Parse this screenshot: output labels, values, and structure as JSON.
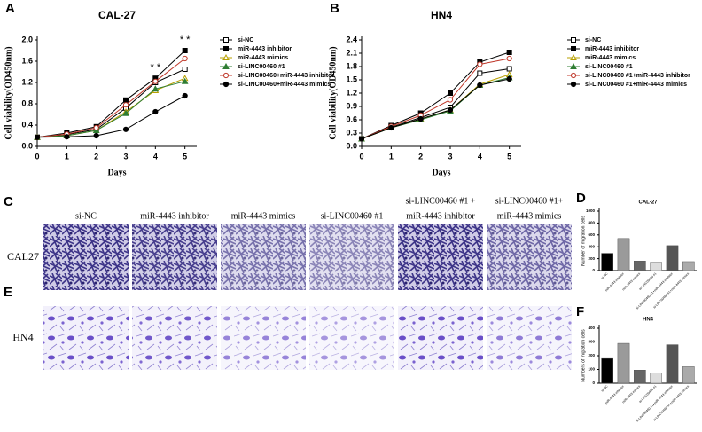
{
  "chart_data": [
    {
      "type": "line",
      "panel_label": "A",
      "title": "CAL-27",
      "xlabel": "Days",
      "ylabel": "Cell viability(OD450nm)",
      "x": [
        0,
        1,
        2,
        3,
        4,
        5
      ],
      "xlim": [
        0,
        5.4
      ],
      "xticks": [
        0,
        1,
        2,
        3,
        4,
        5
      ],
      "ylim": [
        0,
        2.0
      ],
      "yticks": [
        {
          "value": 0,
          "label": "0.0"
        },
        0.4,
        0.8,
        1.2,
        1.6,
        {
          "value": 2.0,
          "label": "2.0"
        }
      ],
      "annotations": [
        {
          "text": "* *",
          "x": 4
        },
        {
          "text": "* *",
          "x": 5
        }
      ],
      "series": [
        {
          "name": "si-NC",
          "color": "#000000",
          "marker": "square-open",
          "values": [
            0.17,
            0.22,
            0.32,
            0.72,
            1.2,
            1.45
          ]
        },
        {
          "name": "miR-4443 inhibitor",
          "color": "#000000",
          "marker": "square",
          "values": [
            0.17,
            0.25,
            0.37,
            0.87,
            1.28,
            1.8
          ]
        },
        {
          "name": "miR-4443 mimics",
          "color": "#b8a000",
          "marker": "triangle-open",
          "values": [
            0.17,
            0.2,
            0.3,
            0.65,
            1.05,
            1.28
          ]
        },
        {
          "name": "si-LINC00460 #1",
          "color": "#2e7d32",
          "marker": "triangle",
          "values": [
            0.17,
            0.2,
            0.3,
            0.62,
            1.08,
            1.22
          ]
        },
        {
          "name": "si-LINC00460+miR-4443 inhibitor",
          "color": "#c0392b",
          "marker": "circle-open",
          "values": [
            0.17,
            0.23,
            0.35,
            0.78,
            1.22,
            1.65
          ]
        },
        {
          "name": "si-LINC00460+miR-4443 mimics",
          "color": "#000000",
          "marker": "circle",
          "values": [
            0.17,
            0.18,
            0.2,
            0.32,
            0.65,
            0.95
          ]
        }
      ]
    },
    {
      "type": "line",
      "panel_label": "B",
      "title": "HN4",
      "xlabel": "Days",
      "ylabel": "Cell viability(OD450nm)",
      "x": [
        0,
        1,
        2,
        3,
        4,
        5
      ],
      "xlim": [
        0,
        5.4
      ],
      "xticks": [
        0,
        1,
        2,
        3,
        4,
        5
      ],
      "ylim": [
        0,
        2.4
      ],
      "yticks": [
        {
          "value": 0,
          "label": "0.0"
        },
        0.3,
        0.6,
        0.9,
        1.2,
        1.5,
        1.8,
        2.1,
        2.4
      ],
      "annotations": [],
      "series": [
        {
          "name": "si-NC",
          "color": "#000000",
          "marker": "square-open",
          "values": [
            0.17,
            0.43,
            0.65,
            0.88,
            1.65,
            1.75
          ]
        },
        {
          "name": "miR-4443 inhibitor",
          "color": "#000000",
          "marker": "square",
          "values": [
            0.17,
            0.47,
            0.75,
            1.2,
            1.9,
            2.12
          ]
        },
        {
          "name": "miR-4443 mimics",
          "color": "#b8a000",
          "marker": "triangle-open",
          "values": [
            0.17,
            0.42,
            0.62,
            0.82,
            1.4,
            1.62
          ]
        },
        {
          "name": "si-LINC00460 #1",
          "color": "#2e7d32",
          "marker": "triangle",
          "values": [
            0.17,
            0.42,
            0.6,
            0.8,
            1.38,
            1.55
          ]
        },
        {
          "name": "si-LINC00460 #1+miR-4443 inhibitor",
          "color": "#c0392b",
          "marker": "circle-open",
          "values": [
            0.17,
            0.45,
            0.7,
            1.05,
            1.85,
            1.98
          ]
        },
        {
          "name": "si-LINC00460 #1+miR-4443 mimics",
          "color": "#000000",
          "marker": "circle",
          "values": [
            0.17,
            0.42,
            0.62,
            0.82,
            1.38,
            1.52
          ]
        }
      ]
    },
    {
      "type": "bar",
      "panel_label": "D",
      "title": "CAL-27",
      "ylabel": "Number of migration cells",
      "categories": [
        "si-NC",
        "miR-4443 inhibitor",
        "miR-4443 mimics",
        "si-LINC00460 #1",
        "si-LINC00460 #1+miR-4443 inhibitor",
        "si-LINC00460 #1+miR-4443 mimics"
      ],
      "values": [
        290,
        540,
        160,
        140,
        420,
        150
      ],
      "colors": [
        "#000000",
        "#9a9a9a",
        "#666666",
        "#dddddd",
        "#555555",
        "#aaaaaa"
      ],
      "ylim": [
        0,
        1000
      ],
      "yticks": [
        0,
        200,
        400,
        600,
        800,
        1000
      ]
    },
    {
      "type": "bar",
      "panel_label": "F",
      "title": "HN4",
      "ylabel": "Numbers of migration cells",
      "categories": [
        "si-NC",
        "miR-4443 inhibitor",
        "miR-4443 mimics",
        "si-LINC00460 #1",
        "si-LINC00460 #1+miR-4443 inhibitor",
        "si-LINC00460 #1+miR-4443 mimics"
      ],
      "values": [
        180,
        290,
        95,
        75,
        280,
        120
      ],
      "colors": [
        "#000000",
        "#9a9a9a",
        "#666666",
        "#dddddd",
        "#555555",
        "#aaaaaa"
      ],
      "ylim": [
        0,
        400
      ],
      "yticks": [
        0,
        100,
        200,
        300,
        400
      ]
    }
  ],
  "images": [
    {
      "panel_label": "C",
      "row_label": "CAL27",
      "columns": [
        [
          "si-NC"
        ],
        [
          "miR-4443 inhibitor"
        ],
        [
          "miR-4443 mimics"
        ],
        [
          "si-LINC00460 #1"
        ],
        [
          "si-LINC00460 #1 +",
          "miR-4443 inhibitor"
        ],
        [
          "si-LINC00460 #1+",
          "miR-4443 mimics"
        ]
      ]
    },
    {
      "panel_label": "E",
      "row_label": "HN4",
      "columns": []
    }
  ]
}
